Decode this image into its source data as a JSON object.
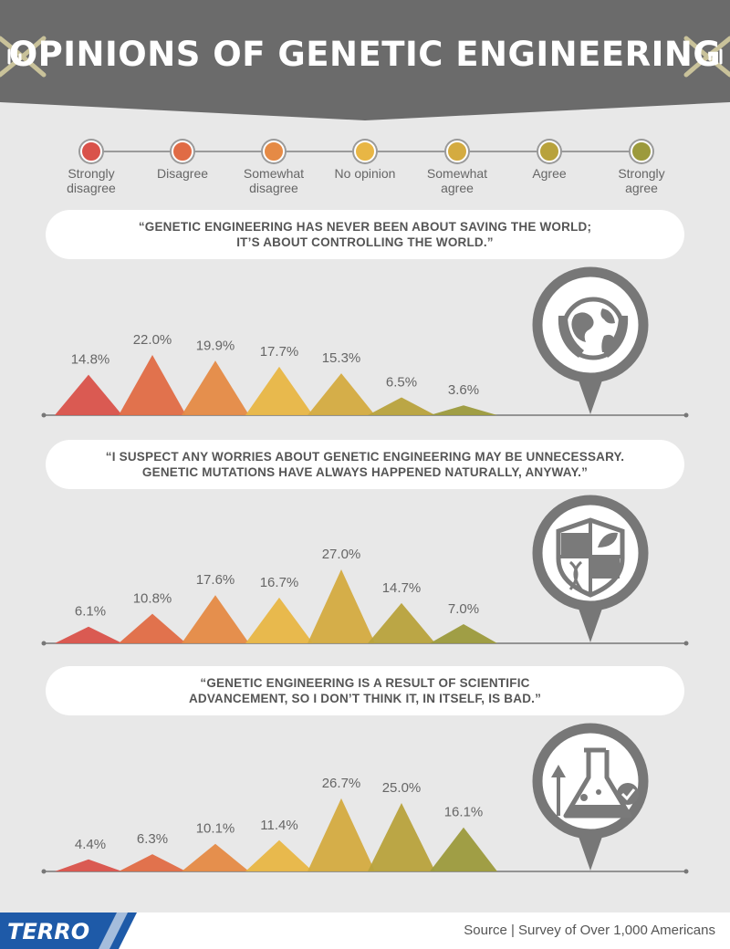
{
  "header": {
    "title": "OPINIONS OF GENETIC ENGINEERING",
    "background_color": "#6b6b6b",
    "icon": "dna-helix-icon"
  },
  "legend": [
    {
      "label": "Strongly\ndisagree",
      "color": "#d9524a"
    },
    {
      "label": "Disagree",
      "color": "#e06b45"
    },
    {
      "label": "Somewhat\ndisagree",
      "color": "#e58a45"
    },
    {
      "label": "No opinion",
      "color": "#e8b645"
    },
    {
      "label": "Somewhat\nagree",
      "color": "#d4ab40"
    },
    {
      "label": "Agree",
      "color": "#b8a23c"
    },
    {
      "label": "Strongly\nagree",
      "color": "#9c9a3c"
    }
  ],
  "quotes": [
    "“GENETIC ENGINEERING HAS NEVER BEEN ABOUT SAVING THE WORLD;\nIT’S ABOUT CONTROLLING THE WORLD.”",
    "“I SUSPECT ANY WORRIES ABOUT GENETIC ENGINEERING MAY BE UNNECESSARY.\nGENETIC MUTATIONS HAVE ALWAYS HAPPENED NATURALLY, ANYWAY.”",
    "“GENETIC ENGINEERING IS A RESULT OF SCIENTIFIC\nADVANCEMENT, SO I DON’T THINK IT, IN ITSELF, IS BAD.”"
  ],
  "chart_data": [
    {
      "type": "area",
      "categories": [
        "Strongly disagree",
        "Disagree",
        "Somewhat disagree",
        "No opinion",
        "Somewhat agree",
        "Agree",
        "Strongly agree"
      ],
      "values": [
        14.8,
        22.0,
        19.9,
        17.7,
        15.3,
        6.5,
        3.6
      ],
      "labels": [
        "14.8%",
        "22.0%",
        "19.9%",
        "17.7%",
        "15.3%",
        "6.5%",
        "3.6%"
      ],
      "icon": "globe-in-hands-icon"
    },
    {
      "type": "area",
      "categories": [
        "Strongly disagree",
        "Disagree",
        "Somewhat disagree",
        "No opinion",
        "Somewhat agree",
        "Agree",
        "Strongly agree"
      ],
      "values": [
        6.1,
        10.8,
        17.6,
        16.7,
        27.0,
        14.7,
        7.0
      ],
      "labels": [
        "6.1%",
        "10.8%",
        "17.6%",
        "16.7%",
        "27.0%",
        "14.7%",
        "7.0%"
      ],
      "icon": "shield-dna-leaf-icon"
    },
    {
      "type": "area",
      "categories": [
        "Strongly disagree",
        "Disagree",
        "Somewhat disagree",
        "No opinion",
        "Somewhat agree",
        "Agree",
        "Strongly agree"
      ],
      "values": [
        4.4,
        6.3,
        10.1,
        11.4,
        26.7,
        25.0,
        16.1
      ],
      "labels": [
        "4.4%",
        "6.3%",
        "10.1%",
        "11.4%",
        "26.7%",
        "25.0%",
        "16.1%"
      ],
      "icon": "flask-arrow-check-icon"
    }
  ],
  "footer": {
    "logo": "TERRO",
    "logo_color": "#1e5aa8",
    "source": "Source | Survey of Over 1,000 Americans"
  }
}
